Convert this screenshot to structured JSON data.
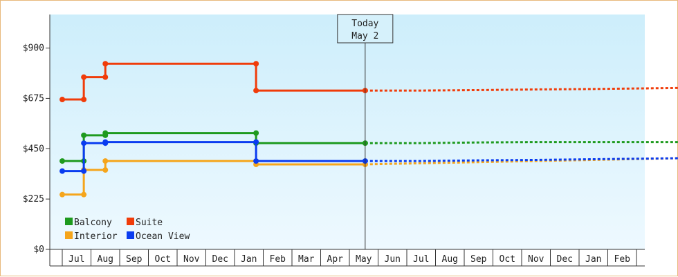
{
  "chart_data": {
    "type": "line",
    "title": "",
    "xlabel": "",
    "ylabel": "",
    "y_ticks": [
      "$0",
      "$225",
      "$450",
      "$675",
      "$900"
    ],
    "ylim": [
      0,
      1050
    ],
    "month_labels": [
      "Jul",
      "Aug",
      "Sep",
      "Oct",
      "Nov",
      "Dec",
      "Jan",
      "Feb",
      "Mar",
      "Apr",
      "May",
      "Jun",
      "Jul",
      "Aug",
      "Sep",
      "Oct",
      "Nov",
      "Dec",
      "Jan",
      "Feb"
    ],
    "today": {
      "line1": "Today",
      "line2": "May 2",
      "x": 10.05
    },
    "legend": {
      "placement": "bottom-left"
    },
    "background_gradient": [
      "#cdeefb",
      "#eef9ff"
    ],
    "series": [
      {
        "name": "Balcony",
        "color": "#1e9a1e",
        "points": [
          [
            -0.5,
            395
          ],
          [
            0.25,
            395
          ],
          [
            0.25,
            510
          ],
          [
            1.0,
            510
          ],
          [
            1.0,
            520
          ],
          [
            6.25,
            520
          ],
          [
            6.25,
            475
          ],
          [
            10.05,
            475
          ]
        ],
        "markers": [
          [
            -0.5,
            395
          ],
          [
            0.25,
            395
          ],
          [
            0.25,
            510
          ],
          [
            1.0,
            510
          ],
          [
            1.0,
            520
          ],
          [
            6.25,
            520
          ],
          [
            6.25,
            475
          ],
          [
            10.05,
            475
          ]
        ],
        "forecast": [
          [
            10.05,
            475
          ],
          [
            12.0,
            475
          ],
          [
            14.0,
            478
          ],
          [
            16.0,
            480
          ],
          [
            18.0,
            480
          ],
          [
            20.0,
            480
          ],
          [
            21.2,
            480
          ]
        ]
      },
      {
        "name": "Interior",
        "color": "#f5a51c",
        "points": [
          [
            -0.5,
            245
          ],
          [
            0.25,
            245
          ],
          [
            0.25,
            355
          ],
          [
            1.0,
            355
          ],
          [
            1.0,
            395
          ],
          [
            6.25,
            395
          ],
          [
            6.25,
            380
          ],
          [
            10.05,
            380
          ]
        ],
        "markers": [
          [
            -0.5,
            245
          ],
          [
            0.25,
            245
          ],
          [
            0.25,
            355
          ],
          [
            1.0,
            355
          ],
          [
            1.0,
            395
          ],
          [
            6.25,
            395
          ],
          [
            6.25,
            380
          ],
          [
            10.05,
            380
          ]
        ],
        "forecast": [
          [
            10.05,
            380
          ],
          [
            12.0,
            385
          ],
          [
            14.0,
            390
          ],
          [
            16.0,
            395
          ],
          [
            18.0,
            400
          ],
          [
            20.0,
            405
          ],
          [
            21.2,
            408
          ]
        ]
      },
      {
        "name": "Suite",
        "color": "#f03c0a",
        "points": [
          [
            -0.5,
            670
          ],
          [
            0.25,
            670
          ],
          [
            0.25,
            770
          ],
          [
            1.0,
            770
          ],
          [
            1.0,
            830
          ],
          [
            6.25,
            830
          ],
          [
            6.25,
            710
          ],
          [
            10.05,
            710
          ]
        ],
        "markers": [
          [
            -0.5,
            670
          ],
          [
            0.25,
            670
          ],
          [
            0.25,
            770
          ],
          [
            1.0,
            770
          ],
          [
            1.0,
            830
          ],
          [
            6.25,
            830
          ],
          [
            6.25,
            710
          ],
          [
            10.05,
            710
          ]
        ],
        "forecast": [
          [
            10.05,
            710
          ],
          [
            12.0,
            710
          ],
          [
            14.0,
            712
          ],
          [
            16.0,
            715
          ],
          [
            18.0,
            717
          ],
          [
            20.0,
            720
          ],
          [
            21.2,
            722
          ]
        ]
      },
      {
        "name": "Ocean View",
        "color": "#0a3cf0",
        "points": [
          [
            -0.5,
            350
          ],
          [
            0.25,
            350
          ],
          [
            0.25,
            475
          ],
          [
            1.0,
            475
          ],
          [
            1.0,
            480
          ],
          [
            6.25,
            480
          ],
          [
            6.25,
            395
          ],
          [
            10.05,
            395
          ]
        ],
        "markers": [
          [
            -0.5,
            350
          ],
          [
            0.25,
            350
          ],
          [
            0.25,
            475
          ],
          [
            1.0,
            475
          ],
          [
            1.0,
            480
          ],
          [
            6.25,
            480
          ],
          [
            6.25,
            395
          ],
          [
            10.05,
            395
          ]
        ],
        "forecast": [
          [
            10.05,
            395
          ],
          [
            12.0,
            395
          ],
          [
            14.0,
            398
          ],
          [
            16.0,
            400
          ],
          [
            18.0,
            403
          ],
          [
            20.0,
            406
          ],
          [
            21.2,
            408
          ]
        ]
      }
    ]
  }
}
